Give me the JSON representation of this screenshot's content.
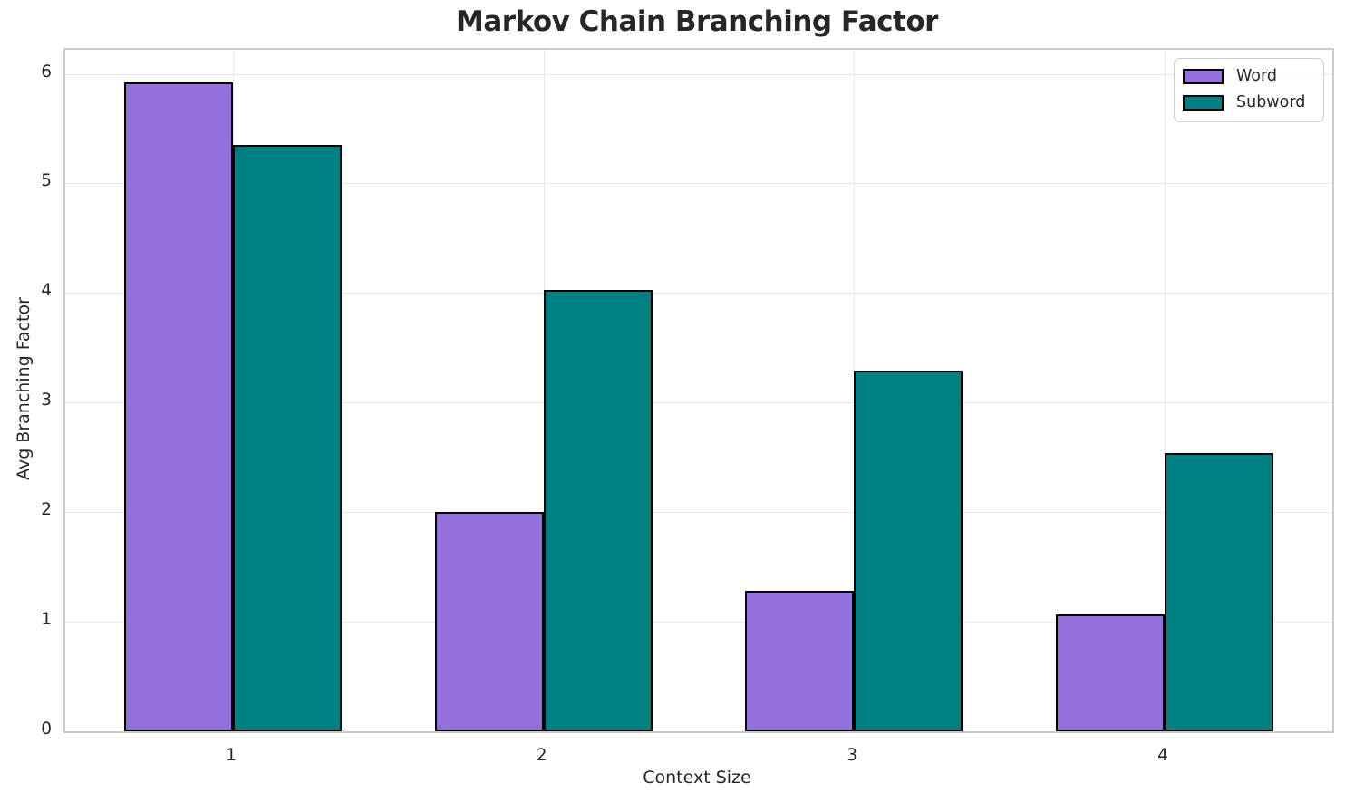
{
  "chart_data": {
    "type": "bar",
    "title": "Markov Chain Branching Factor",
    "xlabel": "Context Size",
    "ylabel": "Avg Branching Factor",
    "categories": [
      "1",
      "2",
      "3",
      "4"
    ],
    "series": [
      {
        "name": "Word",
        "color": "#9370DB",
        "values": [
          5.92,
          2.0,
          1.28,
          1.07
        ]
      },
      {
        "name": "Subword",
        "color": "#008080",
        "values": [
          5.35,
          4.03,
          3.29,
          2.54
        ]
      }
    ],
    "ylim": [
      0,
      6.22
    ],
    "yticks": [
      0,
      1,
      2,
      3,
      4,
      5,
      6
    ],
    "bar_width_units": 0.35,
    "grid": true,
    "legend_position": "upper right",
    "bar_edge_color": "#000000",
    "text_color": "#262626"
  }
}
